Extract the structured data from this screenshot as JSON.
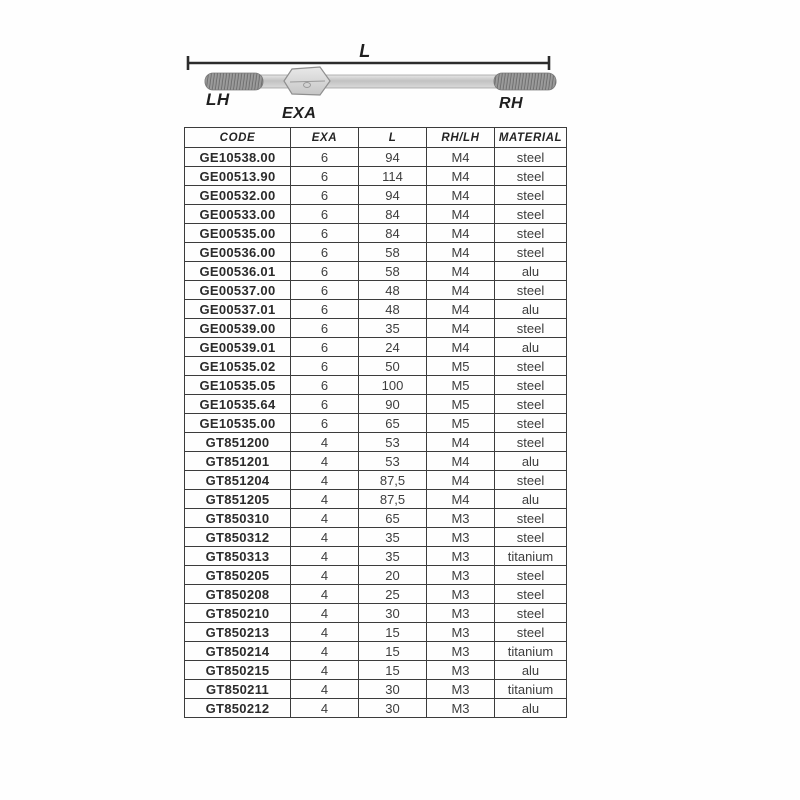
{
  "diagram": {
    "length_label": "L",
    "lh_label": "LH",
    "rh_label": "RH",
    "exa_label": "EXA"
  },
  "colors": {
    "ink": "#2b2b2b",
    "table_border": "#3c3c3c",
    "rod_body": "#cfcfcf",
    "rod_thread": "#9d9d9d"
  },
  "table": {
    "headers": [
      "CODE",
      "EXA",
      "L",
      "RH/LH",
      "MATERIAL"
    ],
    "column_keys": [
      "code",
      "exa",
      "l",
      "rh_lh",
      "material"
    ],
    "rows": [
      {
        "code": "GE10538.00",
        "exa": "6",
        "l": "94",
        "rh_lh": "M4",
        "material": "steel"
      },
      {
        "code": "GE00513.90",
        "exa": "6",
        "l": "114",
        "rh_lh": "M4",
        "material": "steel"
      },
      {
        "code": "GE00532.00",
        "exa": "6",
        "l": "94",
        "rh_lh": "M4",
        "material": "steel"
      },
      {
        "code": "GE00533.00",
        "exa": "6",
        "l": "84",
        "rh_lh": "M4",
        "material": "steel"
      },
      {
        "code": "GE00535.00",
        "exa": "6",
        "l": "84",
        "rh_lh": "M4",
        "material": "steel"
      },
      {
        "code": "GE00536.00",
        "exa": "6",
        "l": "58",
        "rh_lh": "M4",
        "material": "steel"
      },
      {
        "code": "GE00536.01",
        "exa": "6",
        "l": "58",
        "rh_lh": "M4",
        "material": "alu"
      },
      {
        "code": "GE00537.00",
        "exa": "6",
        "l": "48",
        "rh_lh": "M4",
        "material": "steel"
      },
      {
        "code": "GE00537.01",
        "exa": "6",
        "l": "48",
        "rh_lh": "M4",
        "material": "alu"
      },
      {
        "code": "GE00539.00",
        "exa": "6",
        "l": "35",
        "rh_lh": "M4",
        "material": "steel"
      },
      {
        "code": "GE00539.01",
        "exa": "6",
        "l": "24",
        "rh_lh": "M4",
        "material": "alu"
      },
      {
        "code": "GE10535.02",
        "exa": "6",
        "l": "50",
        "rh_lh": "M5",
        "material": "steel"
      },
      {
        "code": "GE10535.05",
        "exa": "6",
        "l": "100",
        "rh_lh": "M5",
        "material": "steel"
      },
      {
        "code": "GE10535.64",
        "exa": "6",
        "l": "90",
        "rh_lh": "M5",
        "material": "steel"
      },
      {
        "code": "GE10535.00",
        "exa": "6",
        "l": "65",
        "rh_lh": "M5",
        "material": "steel"
      },
      {
        "code": "GT851200",
        "exa": "4",
        "l": "53",
        "rh_lh": "M4",
        "material": "steel"
      },
      {
        "code": "GT851201",
        "exa": "4",
        "l": "53",
        "rh_lh": "M4",
        "material": "alu"
      },
      {
        "code": "GT851204",
        "exa": "4",
        "l": "87,5",
        "rh_lh": "M4",
        "material": "steel"
      },
      {
        "code": "GT851205",
        "exa": "4",
        "l": "87,5",
        "rh_lh": "M4",
        "material": "alu"
      },
      {
        "code": "GT850310",
        "exa": "4",
        "l": "65",
        "rh_lh": "M3",
        "material": "steel"
      },
      {
        "code": "GT850312",
        "exa": "4",
        "l": "35",
        "rh_lh": "M3",
        "material": "steel"
      },
      {
        "code": "GT850313",
        "exa": "4",
        "l": "35",
        "rh_lh": "M3",
        "material": "titanium"
      },
      {
        "code": "GT850205",
        "exa": "4",
        "l": "20",
        "rh_lh": "M3",
        "material": "steel"
      },
      {
        "code": "GT850208",
        "exa": "4",
        "l": "25",
        "rh_lh": "M3",
        "material": "steel"
      },
      {
        "code": "GT850210",
        "exa": "4",
        "l": "30",
        "rh_lh": "M3",
        "material": "steel"
      },
      {
        "code": "GT850213",
        "exa": "4",
        "l": "15",
        "rh_lh": "M3",
        "material": "steel"
      },
      {
        "code": "GT850214",
        "exa": "4",
        "l": "15",
        "rh_lh": "M3",
        "material": "titanium"
      },
      {
        "code": "GT850215",
        "exa": "4",
        "l": "15",
        "rh_lh": "M3",
        "material": "alu"
      },
      {
        "code": "GT850211",
        "exa": "4",
        "l": "30",
        "rh_lh": "M3",
        "material": "titanium"
      },
      {
        "code": "GT850212",
        "exa": "4",
        "l": "30",
        "rh_lh": "M3",
        "material": "alu"
      }
    ]
  }
}
